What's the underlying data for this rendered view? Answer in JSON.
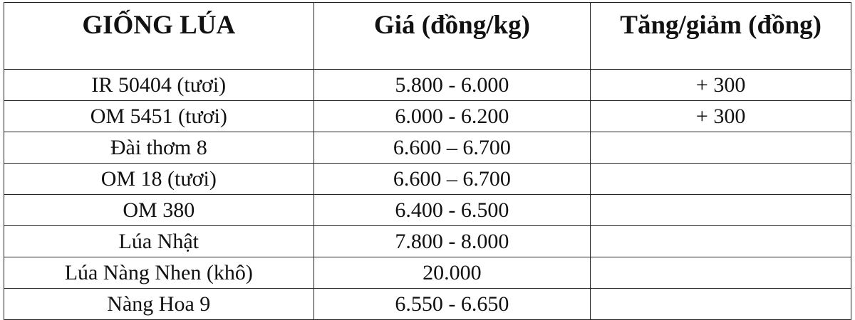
{
  "table": {
    "headers": [
      "GIỐNG LÚA",
      "Giá (đồng/kg)",
      "Tăng/giảm (đồng)"
    ],
    "rows": [
      [
        "IR 50404 (tươi)",
        "5.800 - 6.000",
        "+ 300"
      ],
      [
        "OM 5451 (tươi)",
        "6.000 - 6.200",
        "+ 300"
      ],
      [
        "Đài thơm 8",
        "6.600 – 6.700",
        ""
      ],
      [
        "OM 18 (tươi)",
        "6.600 – 6.700",
        ""
      ],
      [
        "OM 380",
        "6.400 - 6.500",
        ""
      ],
      [
        "Lúa Nhật",
        "7.800 - 8.000",
        ""
      ],
      [
        "Lúa Nàng Nhen (khô)",
        "20.000",
        ""
      ],
      [
        "Nàng Hoa 9",
        "6.550 - 6.650",
        ""
      ]
    ]
  }
}
